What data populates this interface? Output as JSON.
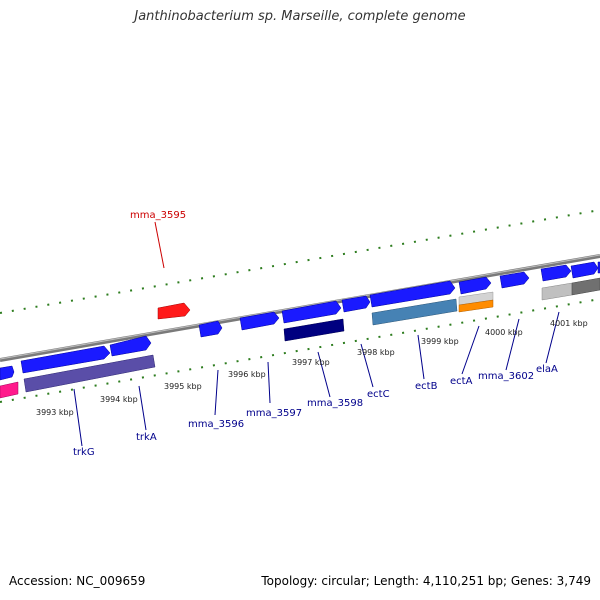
{
  "title": "Janthinobacterium sp. Marseille, complete genome",
  "footer": {
    "accession": "Accession: NC_009659",
    "summary": "Topology: circular; Length: 4,110,251 bp; Genes: 3,749"
  },
  "colors": {
    "backbone": "#808080",
    "tick": "#2e7d1f",
    "gene_forward": "#1a1aff",
    "gene_reverse_label": "#00008b",
    "highlight_label": "#cc0000",
    "highlight_gene": "#ff1a1a"
  },
  "kbp_labels": [
    "3993 kbp",
    "3994 kbp",
    "3995 kbp",
    "3996 kbp",
    "3997 kbp",
    "3998 kbp",
    "3999 kbp",
    "4000 kbp",
    "4001 kbp"
  ],
  "gene_labels": [
    {
      "text": "mma_3595",
      "highlight": true
    },
    {
      "text": "trkG"
    },
    {
      "text": "trkA"
    },
    {
      "text": "mma_3596"
    },
    {
      "text": "mma_3597"
    },
    {
      "text": "mma_3598"
    },
    {
      "text": "ectC"
    },
    {
      "text": "ectB"
    },
    {
      "text": "ectA"
    },
    {
      "text": "mma_3602"
    },
    {
      "text": "elaA"
    }
  ]
}
